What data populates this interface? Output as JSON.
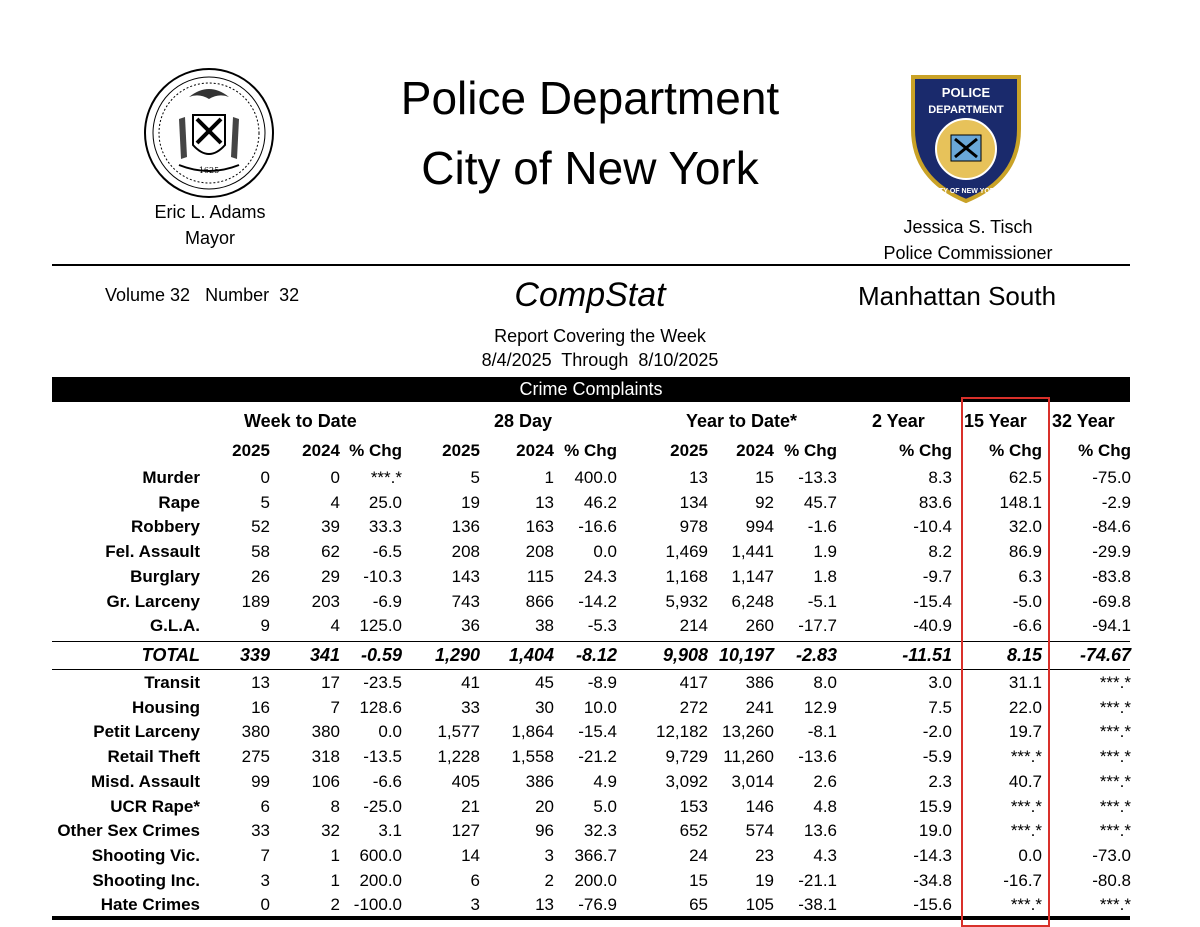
{
  "header": {
    "title_line1": "Police Department",
    "title_line2": "City of New York",
    "mayor_name": "Eric L. Adams",
    "mayor_title": "Mayor",
    "commissioner_name": "Jessica S. Tisch",
    "commissioner_title": "Police Commissioner",
    "seal_left_icon": "nyc-city-seal",
    "seal_left_year": "1625",
    "seal_right_icon": "nypd-badge",
    "badge_text_top": "POLICE",
    "badge_text_mid": "DEPARTMENT",
    "badge_text_bottom": "CITY OF NEW YORK"
  },
  "report": {
    "volume": "Volume 32   Number  32",
    "name": "CompStat",
    "borough": "Manhattan South",
    "covering": "Report Covering the Week",
    "dates": "8/4/2025  Through  8/10/2025",
    "banner": "Crime Complaints"
  },
  "groups": {
    "wtd": "Week to Date",
    "d28": "28 Day",
    "ytd": "Year to Date*",
    "y2": "2 Year",
    "y15": "15 Year",
    "y32": "32 Year"
  },
  "columns": [
    "2025",
    "2024",
    "% Chg",
    "2025",
    "2024",
    "% Chg",
    "2025",
    "2024",
    "% Chg",
    "% Chg",
    "% Chg",
    "% Chg"
  ],
  "rows": [
    {
      "label": "Murder",
      "values": [
        "0",
        "0",
        "***.*",
        "5",
        "1",
        "400.0",
        "13",
        "15",
        "-13.3",
        "8.3",
        "62.5",
        "-75.0"
      ]
    },
    {
      "label": "Rape",
      "values": [
        "5",
        "4",
        "25.0",
        "19",
        "13",
        "46.2",
        "134",
        "92",
        "45.7",
        "83.6",
        "148.1",
        "-2.9"
      ]
    },
    {
      "label": "Robbery",
      "values": [
        "52",
        "39",
        "33.3",
        "136",
        "163",
        "-16.6",
        "978",
        "994",
        "-1.6",
        "-10.4",
        "32.0",
        "-84.6"
      ]
    },
    {
      "label": "Fel. Assault",
      "values": [
        "58",
        "62",
        "-6.5",
        "208",
        "208",
        "0.0",
        "1,469",
        "1,441",
        "1.9",
        "8.2",
        "86.9",
        "-29.9"
      ]
    },
    {
      "label": "Burglary",
      "values": [
        "26",
        "29",
        "-10.3",
        "143",
        "115",
        "24.3",
        "1,168",
        "1,147",
        "1.8",
        "-9.7",
        "6.3",
        "-83.8"
      ]
    },
    {
      "label": "Gr. Larceny",
      "values": [
        "189",
        "203",
        "-6.9",
        "743",
        "866",
        "-14.2",
        "5,932",
        "6,248",
        "-5.1",
        "-15.4",
        "-5.0",
        "-69.8"
      ]
    },
    {
      "label": "G.L.A.",
      "values": [
        "9",
        "4",
        "125.0",
        "36",
        "38",
        "-5.3",
        "214",
        "260",
        "-17.7",
        "-40.9",
        "-6.6",
        "-94.1"
      ]
    }
  ],
  "total": {
    "label": "TOTAL",
    "values": [
      "339",
      "341",
      "-0.59",
      "1,290",
      "1,404",
      "-8.12",
      "9,908",
      "10,197",
      "-2.83",
      "-11.51",
      "8.15",
      "-74.67"
    ]
  },
  "other_rows": [
    {
      "label": "Transit",
      "values": [
        "13",
        "17",
        "-23.5",
        "41",
        "45",
        "-8.9",
        "417",
        "386",
        "8.0",
        "3.0",
        "31.1",
        "***.*"
      ]
    },
    {
      "label": "Housing",
      "values": [
        "16",
        "7",
        "128.6",
        "33",
        "30",
        "10.0",
        "272",
        "241",
        "12.9",
        "7.5",
        "22.0",
        "***.*"
      ]
    },
    {
      "label": "Petit Larceny",
      "values": [
        "380",
        "380",
        "0.0",
        "1,577",
        "1,864",
        "-15.4",
        "12,182",
        "13,260",
        "-8.1",
        "-2.0",
        "19.7",
        "***.*"
      ]
    },
    {
      "label": "Retail Theft",
      "values": [
        "275",
        "318",
        "-13.5",
        "1,228",
        "1,558",
        "-21.2",
        "9,729",
        "11,260",
        "-13.6",
        "-5.9",
        "***.*",
        "***.*"
      ]
    },
    {
      "label": "Misd. Assault",
      "values": [
        "99",
        "106",
        "-6.6",
        "405",
        "386",
        "4.9",
        "3,092",
        "3,014",
        "2.6",
        "2.3",
        "40.7",
        "***.*"
      ]
    },
    {
      "label": "UCR Rape*",
      "values": [
        "6",
        "8",
        "-25.0",
        "21",
        "20",
        "5.0",
        "153",
        "146",
        "4.8",
        "15.9",
        "***.*",
        "***.*"
      ]
    },
    {
      "label": "Other Sex Crimes",
      "values": [
        "33",
        "32",
        "3.1",
        "127",
        "96",
        "32.3",
        "652",
        "574",
        "13.6",
        "19.0",
        "***.*",
        "***.*"
      ]
    },
    {
      "label": "Shooting Vic.",
      "values": [
        "7",
        "1",
        "600.0",
        "14",
        "3",
        "366.7",
        "24",
        "23",
        "4.3",
        "-14.3",
        "0.0",
        "-73.0"
      ]
    },
    {
      "label": "Shooting Inc.",
      "values": [
        "3",
        "1",
        "200.0",
        "6",
        "2",
        "200.0",
        "15",
        "19",
        "-21.1",
        "-34.8",
        "-16.7",
        "-80.8"
      ]
    },
    {
      "label": "Hate Crimes",
      "values": [
        "0",
        "2",
        "-100.0",
        "3",
        "13",
        "-76.9",
        "65",
        "105",
        "-38.1",
        "-15.6",
        "***.*",
        "***.*"
      ]
    }
  ],
  "highlight": {
    "color": "#d9302a",
    "column": "15 Year"
  }
}
